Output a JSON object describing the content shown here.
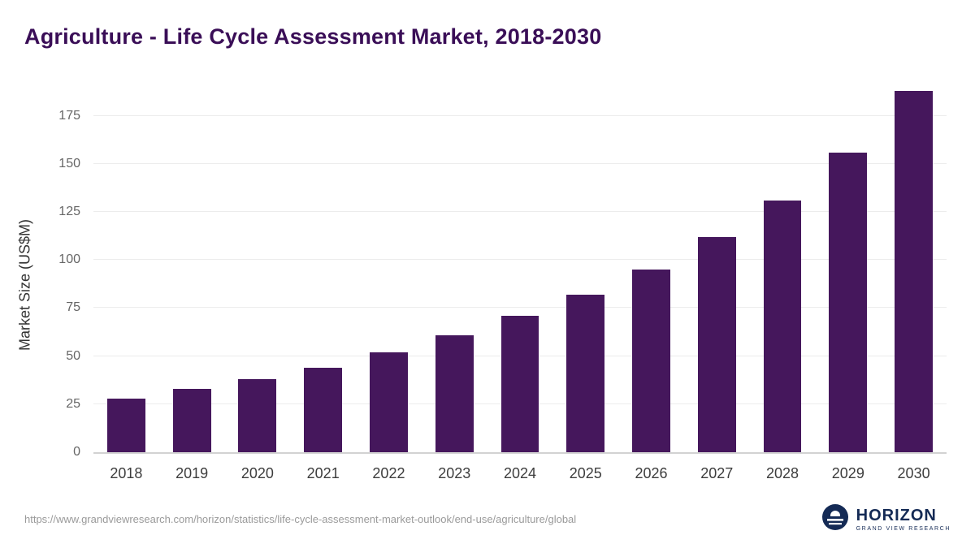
{
  "title": "Agriculture - Life Cycle Assessment Market, 2018-2030",
  "chart_data": {
    "type": "bar",
    "title": "Agriculture - Life Cycle Assessment Market, 2018-2030",
    "categories": [
      "2018",
      "2019",
      "2020",
      "2021",
      "2022",
      "2023",
      "2024",
      "2025",
      "2026",
      "2027",
      "2028",
      "2029",
      "2030"
    ],
    "values": [
      28,
      33,
      38,
      44,
      52,
      61,
      71,
      82,
      95,
      112,
      131,
      156,
      188
    ],
    "xlabel": "",
    "ylabel": "Market Size (US$M)",
    "ylim": [
      0,
      190
    ],
    "yticks": [
      0,
      25,
      50,
      75,
      100,
      125,
      150,
      175
    ],
    "grid": "horizontal",
    "bar_color": "#45175c",
    "gridline_color": "#ececec"
  },
  "footer": {
    "source_url": "https://www.grandviewresearch.com/horizon/statistics/life-cycle-assessment-market-outlook/end-use/agriculture/global",
    "logo_name": "HORIZON",
    "logo_subtitle": "GRAND VIEW RESEARCH",
    "logo_color": "#142a55"
  }
}
